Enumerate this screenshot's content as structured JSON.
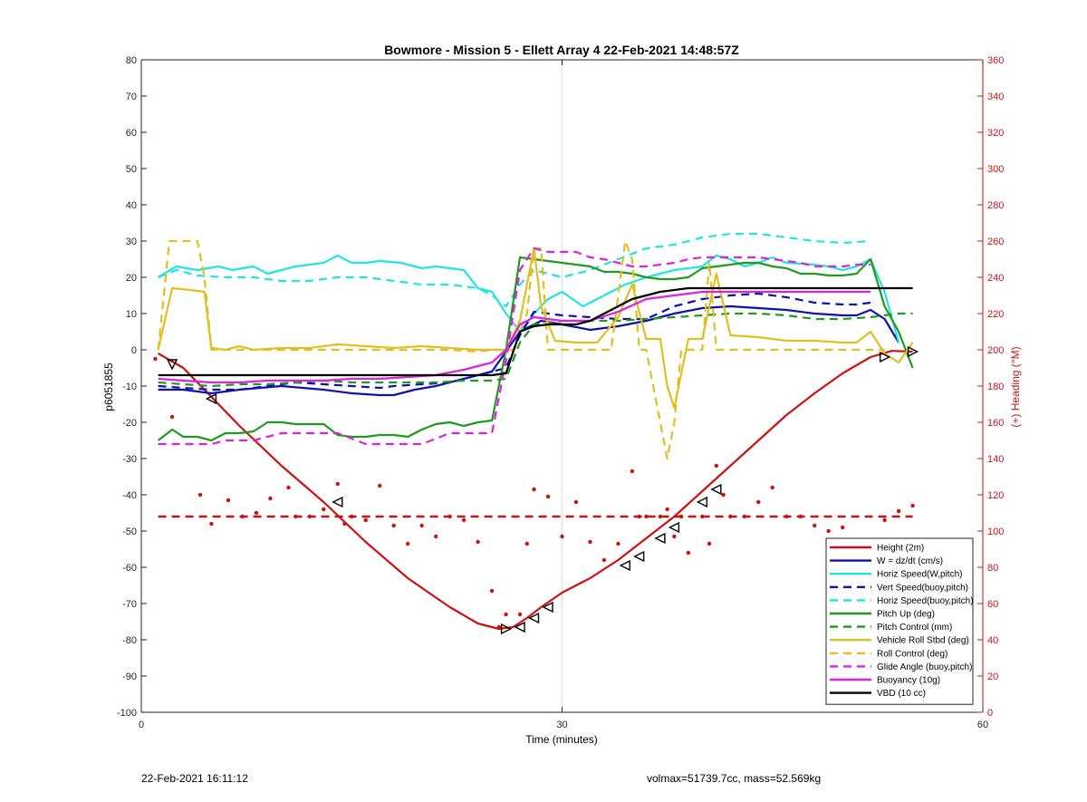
{
  "footer": {
    "timestamp": "22-Feb-2021 16:11:12",
    "summary": "volmax=51739.7cc, mass=52.569kg"
  },
  "chart_data": {
    "type": "line",
    "title": "Bowmore - Mission 5 - Ellett Array 4 22-Feb-2021 14:48:57Z",
    "xlabel": "Time (minutes)",
    "ylabel": "p6051855",
    "y2label": "(+) Heading (°M)",
    "xlim": [
      0,
      60
    ],
    "ylim": [
      -100,
      80
    ],
    "y2lim": [
      0,
      360
    ],
    "xticks": [
      0,
      30,
      60
    ],
    "yticks": [
      -100,
      -90,
      -80,
      -70,
      -60,
      -50,
      -40,
      -30,
      -20,
      -10,
      0,
      10,
      20,
      30,
      40,
      50,
      60,
      70,
      80
    ],
    "y2ticks": [
      0,
      20,
      40,
      60,
      80,
      100,
      120,
      140,
      160,
      180,
      200,
      220,
      240,
      260,
      280,
      300,
      320,
      340,
      360
    ],
    "grid": "x=30 vertical line only",
    "legend_position": "bottom-right",
    "colors": {
      "red": "#cc1111",
      "blue": "#1010b0",
      "cyan": "#22e4e4",
      "green": "#1f9a1f",
      "yellow": "#e0c020",
      "magenta": "#e020e0",
      "black": "#000000"
    },
    "series": [
      {
        "name": "Height (2m)",
        "color": "#cc1111",
        "style": "solid",
        "width": 2.2,
        "x": [
          1.2,
          3,
          5,
          7,
          10,
          13,
          16,
          19,
          22,
          24,
          25.5,
          26.5,
          27.5,
          28.5,
          30,
          32,
          34,
          36,
          38,
          40,
          42,
          44,
          46,
          48,
          50,
          52,
          53.5,
          55
        ],
        "y": [
          -1,
          -5,
          -13,
          -21,
          -32,
          -42,
          -53,
          -63,
          -71,
          -75.5,
          -77,
          -76.5,
          -74,
          -71,
          -67,
          -63,
          -58,
          -52,
          -46,
          -39,
          -32,
          -25,
          -18,
          -12,
          -6.5,
          -2,
          -0.3,
          -0.5
        ]
      },
      {
        "name": "W = dz/dt (cm/s)",
        "color": "#1010b0",
        "style": "solid",
        "width": 2.2,
        "x": [
          1.2,
          3,
          5,
          7,
          10,
          13,
          15,
          17,
          18,
          19.5,
          21,
          23,
          25,
          27,
          28.5,
          30,
          32,
          34,
          36,
          38,
          40,
          42,
          44,
          46,
          48,
          50,
          51,
          52,
          53,
          54
        ],
        "y": [
          -11,
          -11,
          -12,
          -11,
          -10,
          -11,
          -12,
          -12.5,
          -12.5,
          -11,
          -10,
          -8,
          -6,
          5,
          8,
          7,
          5.5,
          6.5,
          8,
          10,
          11.5,
          12,
          11.5,
          11,
          10,
          9.5,
          9.5,
          11,
          8.5,
          2
        ]
      },
      {
        "name": "Horiz Speed(W,pitch)",
        "color": "#22e4e4",
        "style": "solid",
        "width": 2.2,
        "x": [
          1.2,
          2.5,
          4,
          5.5,
          6.5,
          8,
          9,
          11,
          13,
          14,
          15,
          16,
          17,
          18.5,
          20,
          21,
          22,
          23,
          24,
          25,
          26,
          27,
          28,
          29,
          30,
          31.5,
          33,
          34.5,
          36,
          38,
          40,
          41,
          42,
          43,
          44,
          45,
          46,
          48,
          49,
          50,
          51,
          52,
          53,
          54
        ],
        "y": [
          20,
          23,
          22,
          23,
          22,
          23,
          21,
          23,
          24,
          26,
          24,
          24,
          24.5,
          24,
          22.5,
          23,
          22.5,
          22,
          17,
          16,
          10,
          5,
          10,
          14,
          16,
          12,
          15,
          18,
          20,
          22,
          23,
          26,
          25,
          23,
          24,
          25.5,
          24,
          23.5,
          23,
          22,
          23,
          25,
          16,
          2
        ]
      },
      {
        "name": "Vert Speed(buoy,pitch)",
        "color": "#1010b0",
        "style": "dashed",
        "width": 2.2,
        "x": [
          1.2,
          3,
          5,
          7,
          9,
          11,
          13,
          15,
          17,
          18,
          20,
          22,
          24,
          25,
          26,
          27,
          28,
          29,
          30,
          32,
          34,
          36,
          38,
          40,
          42,
          44,
          46,
          48,
          50,
          51,
          52
        ],
        "y": [
          -10,
          -10.5,
          -11,
          -11,
          -10,
          -9,
          -9.5,
          -10,
          -10.5,
          -10,
          -9.5,
          -9,
          -7,
          -6,
          -5,
          4,
          10.5,
          10,
          9.5,
          9,
          8.5,
          8.5,
          12,
          14,
          15,
          15.5,
          14.5,
          13,
          12.5,
          12.5,
          13
        ]
      },
      {
        "name": "Horiz Speed(buoy,pitch)",
        "color": "#22e4e4",
        "style": "dashed",
        "width": 2.2,
        "x": [
          1.2,
          2.5,
          4,
          6,
          8,
          10,
          12,
          14,
          16,
          18,
          20,
          22,
          24,
          25,
          26,
          27,
          28,
          29,
          30,
          32,
          34,
          36,
          38,
          40,
          42,
          44,
          46,
          48,
          50,
          52
        ],
        "y": [
          20,
          22,
          20.5,
          20,
          20,
          19,
          19,
          20,
          20,
          19,
          18,
          18,
          17,
          15,
          12,
          18,
          22,
          21,
          20,
          22,
          25,
          28,
          29,
          31,
          32,
          32,
          31,
          30,
          29.5,
          30
        ]
      },
      {
        "name": "Pitch Up (deg)",
        "color": "#1f9a1f",
        "style": "solid",
        "width": 2.2,
        "x": [
          1.2,
          2.2,
          3,
          4,
          5,
          6,
          7,
          8,
          9,
          10,
          11,
          12,
          13,
          14,
          15,
          16,
          17,
          18,
          19,
          20,
          21,
          22,
          23,
          24,
          25,
          26,
          27,
          28,
          29,
          30,
          31,
          32,
          33,
          34,
          35,
          36,
          37,
          38,
          39,
          40,
          41,
          42,
          43,
          44,
          45,
          46,
          47,
          48,
          49,
          50,
          51,
          52,
          53,
          54,
          55
        ],
        "y": [
          -25,
          -22,
          -24,
          -24,
          -25,
          -23,
          -23,
          -22.5,
          -20,
          -20,
          -20.5,
          -20.5,
          -20.5,
          -23.5,
          -24,
          -24,
          -23.5,
          -23.5,
          -24,
          -22,
          -20.5,
          -20,
          -21,
          -20,
          -19.5,
          0,
          25.5,
          25,
          24.5,
          24,
          23.5,
          23,
          21.5,
          21.5,
          21,
          20,
          19.5,
          19.5,
          20,
          22.5,
          23,
          23.5,
          24,
          24,
          23,
          22.5,
          21,
          21,
          20.5,
          20.5,
          21,
          25,
          12,
          5,
          -5
        ]
      },
      {
        "name": "Pitch Control (mm)",
        "color": "#1f9a1f",
        "style": "dashed",
        "width": 2.2,
        "x": [
          1.2,
          3,
          5,
          7,
          9,
          11,
          13,
          15,
          17,
          19,
          21,
          23,
          25,
          26,
          27,
          28,
          30,
          32,
          34,
          36,
          38,
          40,
          42,
          44,
          46,
          48,
          50,
          52,
          53,
          54,
          55
        ],
        "y": [
          -9,
          -9.5,
          -10,
          -9.5,
          -9.5,
          -9,
          -8.5,
          -9,
          -9,
          -9,
          -9,
          -8.5,
          -8.5,
          -8,
          2,
          7,
          8,
          8,
          8,
          8.5,
          9,
          9.5,
          10,
          10,
          9.5,
          8.5,
          8.5,
          9,
          9.5,
          10,
          10
        ]
      },
      {
        "name": "Vehicle Roll Stbd (deg)",
        "color": "#e0c020",
        "style": "solid",
        "width": 2.2,
        "x": [
          1.2,
          2.2,
          3.5,
          4.5,
          5,
          6,
          7,
          8,
          10,
          12,
          14,
          16,
          18,
          20,
          22,
          24,
          25,
          26,
          27,
          28,
          28.5,
          29.5,
          31,
          32.5,
          34,
          35,
          36,
          37,
          37.5,
          38,
          39,
          40,
          41,
          42,
          44,
          46,
          48,
          50,
          51,
          52,
          53,
          54,
          55
        ],
        "y": [
          0,
          17,
          16.5,
          16,
          0.5,
          0,
          1,
          0,
          0.5,
          0.5,
          1.5,
          1,
          0.5,
          1,
          0.5,
          0,
          0,
          0,
          8,
          28,
          12,
          2.5,
          2,
          2,
          9,
          18,
          3,
          3,
          -10,
          -16,
          3,
          3,
          21,
          4,
          3.5,
          2.5,
          2.5,
          2,
          2,
          5,
          -1,
          -3.5,
          2
        ]
      },
      {
        "name": "Roll Control (deg)",
        "color": "#e0c020",
        "style": "dashed",
        "width": 2.2,
        "x": [
          1.2,
          2,
          3,
          4,
          4.5,
          5,
          6,
          8,
          10,
          12,
          14,
          16,
          18,
          20,
          22,
          24,
          25,
          26,
          26.5,
          27.5,
          28,
          28.5,
          29,
          30,
          32,
          33.5,
          34.5,
          35,
          35.5,
          36,
          36.5,
          37,
          37.5,
          38,
          38.5,
          39,
          40,
          40.5,
          41,
          41.5,
          42,
          44,
          46,
          48,
          50,
          52,
          53
        ],
        "y": [
          0,
          30,
          30,
          30,
          20,
          0,
          0,
          0,
          0,
          0,
          0,
          0,
          0,
          0,
          0,
          -0.5,
          0,
          0,
          0,
          10,
          28,
          28,
          0,
          0,
          0,
          0,
          30,
          25,
          0,
          0,
          -10,
          -20,
          -30,
          -20,
          0,
          0,
          0,
          24,
          0,
          0,
          0,
          0,
          0,
          0,
          0,
          0,
          0
        ]
      },
      {
        "name": "Glide Angle (buoy,pitch)",
        "color": "#e020e0",
        "style": "dashed",
        "width": 2.2,
        "x": [
          1.2,
          2,
          3,
          4,
          5,
          6,
          7,
          8,
          10,
          12,
          14,
          16,
          18,
          20,
          22,
          24,
          25,
          26,
          27,
          28,
          29,
          30,
          31,
          32,
          33,
          34,
          35,
          36,
          37,
          38,
          39,
          40,
          41,
          42,
          43,
          44,
          45,
          46,
          47,
          48,
          49,
          50,
          51,
          52
        ],
        "y": [
          -26,
          -26,
          -26,
          -26,
          -26,
          -25,
          -25,
          -25,
          -23,
          -23,
          -23,
          -26,
          -26,
          -26,
          -23,
          -23,
          -23,
          -3,
          22,
          28,
          27,
          27,
          27,
          25.5,
          25,
          24,
          23,
          23,
          23.5,
          24,
          25,
          25.5,
          25.5,
          25.5,
          25.5,
          25.5,
          25,
          24.5,
          24,
          23,
          23,
          23,
          23.5,
          23.5
        ]
      },
      {
        "name": "Buoyancy (10g)",
        "color": "#e020e0",
        "style": "solid",
        "width": 2.2,
        "x": [
          1.2,
          3,
          5,
          7,
          9,
          11,
          13,
          15,
          17,
          19,
          21,
          23,
          25,
          26,
          27,
          28,
          30,
          32,
          34,
          36,
          38,
          40,
          42,
          44,
          46,
          48,
          50,
          52
        ],
        "y": [
          -8,
          -8.5,
          -9,
          -9,
          -8.5,
          -8.5,
          -8.5,
          -8,
          -8,
          -7.5,
          -7,
          -5.5,
          -3.5,
          0,
          7,
          9,
          8,
          8,
          10.5,
          14,
          15,
          16,
          16,
          16,
          16,
          16,
          16,
          16
        ]
      },
      {
        "name": "VBD (10 cc)",
        "color": "#000000",
        "style": "solid",
        "width": 2.2,
        "x": [
          1.2,
          3,
          5,
          7,
          9,
          11,
          13,
          15,
          17,
          19,
          21,
          23,
          25,
          26,
          27,
          28,
          29,
          30,
          31,
          32,
          33,
          34,
          35,
          36,
          37,
          38,
          39,
          40,
          42,
          44,
          46,
          48,
          50,
          52,
          54,
          55
        ],
        "y": [
          -7,
          -7,
          -7,
          -7,
          -7,
          -7,
          -7,
          -7,
          -7,
          -7,
          -7,
          -7,
          -7,
          -6.5,
          5,
          6.5,
          7,
          7,
          7,
          8,
          10,
          12,
          14,
          15,
          16,
          16.5,
          17,
          17,
          17,
          17,
          17,
          17,
          17,
          17,
          17,
          17
        ]
      }
    ],
    "heading_reference": {
      "axis": "right",
      "value": 108,
      "style": "dashed",
      "color": "#cc1111",
      "xlim": [
        1.2,
        55
      ]
    },
    "heading_points": {
      "axis": "right",
      "color": "#cc1111",
      "x": [
        1.0,
        2.2,
        4.2,
        5,
        6.2,
        7.2,
        8.2,
        9.2,
        10.5,
        11,
        12,
        13,
        14,
        14.5,
        15,
        16,
        17,
        18,
        19,
        20,
        21,
        22,
        23,
        24,
        25,
        25.5,
        26,
        27,
        27.5,
        28,
        29,
        30,
        31,
        32,
        33,
        34,
        35,
        35.5,
        36,
        37,
        37.5,
        38,
        38.5,
        39,
        40,
        40.5,
        41,
        41.5,
        42,
        43,
        44,
        45,
        46,
        47,
        48,
        49,
        50,
        51,
        52,
        53,
        54,
        55
      ],
      "y": [
        195,
        163,
        120,
        104,
        117,
        108,
        110,
        118,
        124,
        108,
        108,
        112,
        126,
        104,
        108,
        106,
        125,
        103,
        93,
        103,
        97,
        108,
        106,
        94,
        67,
        47,
        54,
        54,
        93,
        123,
        119,
        97,
        116,
        94,
        84,
        93,
        133,
        108,
        108,
        108,
        112,
        97,
        108,
        88,
        108,
        93,
        136,
        120,
        108,
        108,
        116,
        124,
        108,
        108,
        103,
        100,
        102,
        94,
        88,
        106,
        111,
        114
      ]
    },
    "height_markers": {
      "x": [
        2.2,
        5,
        14,
        26,
        27,
        28,
        29,
        34.5,
        35.5,
        37,
        38,
        40,
        41
      ],
      "y": [
        -4,
        -13.5,
        -42,
        -77,
        -76.5,
        -74,
        -71,
        -59.5,
        -57,
        -52,
        -49,
        -42,
        -38.5
      ],
      "direction": [
        "down",
        "left",
        "left",
        "right",
        "left",
        "left",
        "left",
        "left",
        "left",
        "left",
        "left",
        "left",
        "left"
      ]
    },
    "end_markers": {
      "x": [
        53,
        55
      ],
      "y": [
        -2,
        -0.5
      ],
      "direction": [
        "right",
        "right"
      ]
    }
  }
}
